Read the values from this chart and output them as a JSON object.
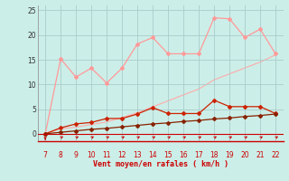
{
  "x": [
    7,
    8,
    9,
    10,
    11,
    12,
    13,
    14,
    15,
    16,
    17,
    18,
    19,
    20,
    21,
    22
  ],
  "line_pink": [
    0,
    15.2,
    11.5,
    13.3,
    10.3,
    13.3,
    18.2,
    19.5,
    16.2,
    16.2,
    16.2,
    23.5,
    23.3,
    19.5,
    21.2,
    16.2
  ],
  "line_red_upper": [
    0,
    1.2,
    2.0,
    2.3,
    3.1,
    3.1,
    4.0,
    5.3,
    4.1,
    4.1,
    4.1,
    6.8,
    5.5,
    5.5,
    5.5,
    4.1
  ],
  "line_red_lower": [
    0,
    0.3,
    0.6,
    0.9,
    1.1,
    1.4,
    1.7,
    2.0,
    2.2,
    2.5,
    2.7,
    3.0,
    3.2,
    3.5,
    3.7,
    4.0
  ],
  "line_diagonal": [
    0,
    1.0,
    1.33,
    1.87,
    2.4,
    3.27,
    4.27,
    5.47,
    6.67,
    7.87,
    9.07,
    10.93,
    12.13,
    13.33,
    14.53,
    16.0
  ],
  "color_pink": "#FF9999",
  "color_red_upper": "#CC2200",
  "color_red_lower": "#882200",
  "color_diagonal": "#FFAAAA",
  "background_color": "#CCEEE8",
  "grid_color": "#AACCCC",
  "xlabel": "Vent moyen/en rafales ( km/h )",
  "xlabel_color": "#CC0000",
  "xlim_min": 6.5,
  "xlim_max": 22.5,
  "ylim_min": -1.5,
  "ylim_max": 26,
  "yticks": [
    0,
    5,
    10,
    15,
    20,
    25
  ],
  "xticks": [
    7,
    8,
    9,
    10,
    11,
    12,
    13,
    14,
    15,
    16,
    17,
    18,
    19,
    20,
    21,
    22
  ],
  "figsize": [
    3.2,
    2.0
  ],
  "dpi": 100
}
